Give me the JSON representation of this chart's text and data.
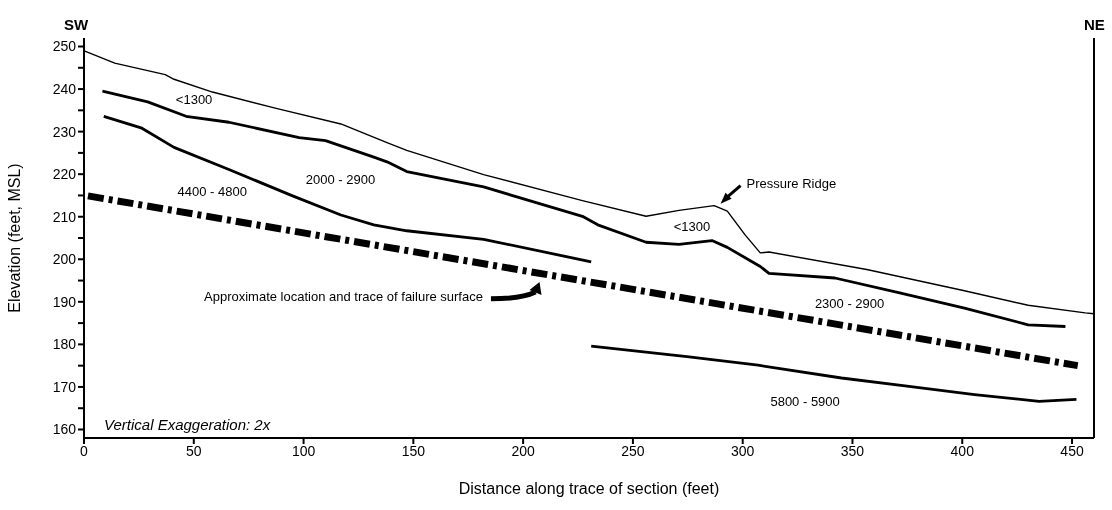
{
  "chart_data": {
    "type": "line",
    "xlabel": "Distance along trace of section (feet)",
    "ylabel": "Elevation (feet, MSL)",
    "xlim": [
      0,
      460
    ],
    "ylim": [
      158,
      252
    ],
    "xticks": [
      0,
      50,
      100,
      150,
      200,
      250,
      300,
      350,
      400,
      450
    ],
    "yticks": [
      160,
      {
        "value": 165,
        "label": null
      },
      170,
      {
        "value": 175,
        "label": null
      },
      180,
      {
        "value": 185,
        "label": null
      },
      190,
      {
        "value": 195,
        "label": null
      },
      200,
      {
        "value": 205,
        "label": null
      },
      210,
      {
        "value": 215,
        "label": null
      },
      220,
      {
        "value": 225,
        "label": null
      },
      230,
      {
        "value": 235,
        "label": null
      },
      240,
      {
        "value": 245,
        "label": null
      },
      250
    ],
    "grid": false,
    "marker": "none",
    "series": [
      {
        "color": "#000000",
        "line_style": "solid",
        "x": [
          0.4,
          14,
          27.5,
          37,
          41,
          58.5,
          88,
          117,
          138,
          147,
          182,
          227,
          256,
          271,
          287,
          293,
          301,
          308,
          312,
          356.5,
          401,
          430,
          456,
          460
        ],
        "values": [
          248.9,
          246.1,
          244.5,
          243.4,
          242.3,
          239.3,
          235.4,
          231.8,
          227.4,
          225.6,
          219.9,
          213.8,
          210.1,
          211.5,
          212.6,
          211.3,
          205.8,
          201.5,
          201.7,
          197.6,
          192.6,
          189.2,
          187.4,
          187.2
        ]
      },
      {
        "color": "#000000",
        "line_style": "solid",
        "x": [
          8.4,
          29,
          46.5,
          66,
          98,
          110,
          132,
          138,
          147,
          182,
          227,
          234,
          256,
          271,
          286,
          293,
          308,
          312,
          342,
          371.5,
          401,
          430,
          447
        ],
        "values": [
          239.5,
          237,
          233.6,
          232.2,
          228.6,
          227.9,
          224,
          222.9,
          220.6,
          217,
          210.1,
          208.1,
          204,
          203.5,
          204.4,
          202.8,
          198.3,
          196.7,
          195.6,
          192.1,
          188.5,
          184.6,
          184.2
        ]
      },
      {
        "color": "#000000",
        "line_style": "solid",
        "x": [
          9,
          26,
          41,
          66,
          95,
          117,
          132,
          147,
          182,
          231
        ],
        "values": [
          233.6,
          230.9,
          226.3,
          221.1,
          214.9,
          210.4,
          208.1,
          206.7,
          204.7,
          199.4
        ]
      },
      {
        "color": "#000000",
        "line_style": "solid",
        "x": [
          231,
          274.6,
          307,
          345,
          373,
          405.6,
          435,
          452
        ],
        "values": [
          179.6,
          177.1,
          175.1,
          172.1,
          170.3,
          168.2,
          166.6,
          167.1
        ]
      },
      {
        "color": "#000000",
        "line_style": "dashed",
        "x": [
          1.8,
          452.6
        ],
        "values": [
          214.9,
          175
        ]
      }
    ],
    "annotations": [
      "SW",
      "NE",
      "Vertical Exaggeration: 2x",
      "<1300",
      "2000 - 2900",
      "4400 - 4800",
      "<1300",
      "2300 - 2900",
      "5800 - 5900",
      "Approximate location and trace of failure surface",
      {
        "text": "Pressure Ridge",
        "x": 289,
        "y": 212.6
      }
    ]
  }
}
